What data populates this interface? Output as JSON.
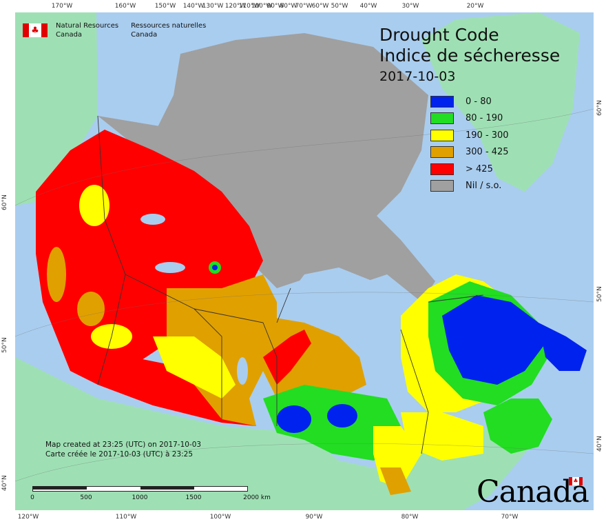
{
  "title": {
    "line1": "Drought Code",
    "line2": "Indice de sécheresse",
    "date": "2017-10-03"
  },
  "legend": [
    {
      "label": "0 - 80",
      "color": "#0022ee"
    },
    {
      "label": "80 - 190",
      "color": "#22dd22"
    },
    {
      "label": "190 - 300",
      "color": "#ffff00"
    },
    {
      "label": "300 - 425",
      "color": "#e0a000"
    },
    {
      "label": "> 425",
      "color": "#ff0000"
    },
    {
      "label": "Nil / s.o.",
      "color": "#a0a0a0"
    }
  ],
  "agency": {
    "en_line1": "Natural Resources",
    "en_line2": "Canada",
    "fr_line1": "Ressources naturelles",
    "fr_line2": "Canada"
  },
  "credit": {
    "en": "Map created at 23:25 (UTC) on 2017-10-03",
    "fr": "Carte créée le 2017-10-03 (UTC) à 23:25"
  },
  "scale": {
    "labels": [
      "0",
      "500",
      "1000",
      "1500",
      "2000 km"
    ]
  },
  "wordmark": "Canada",
  "graticule": {
    "top": [
      "170°W",
      "160°W",
      "150°W",
      "140°W",
      "130°W",
      "120°W",
      "110°W",
      "100°W",
      "90°W",
      "80°W",
      "70°W",
      "60°W",
      "50°W",
      "40°W",
      "30°W",
      "20°W"
    ],
    "bottom": [
      "120°W",
      "110°W",
      "100°W",
      "90°W",
      "80°W",
      "70°W"
    ],
    "left": [
      "60°N",
      "50°N",
      "40°N"
    ],
    "right": [
      "60°N",
      "50°N",
      "40°N"
    ]
  },
  "colors": {
    "ocean": "#a9cdef",
    "land_outside": "#9ee0b4",
    "no_data": "#a0a0a0",
    "border": "#333333"
  }
}
